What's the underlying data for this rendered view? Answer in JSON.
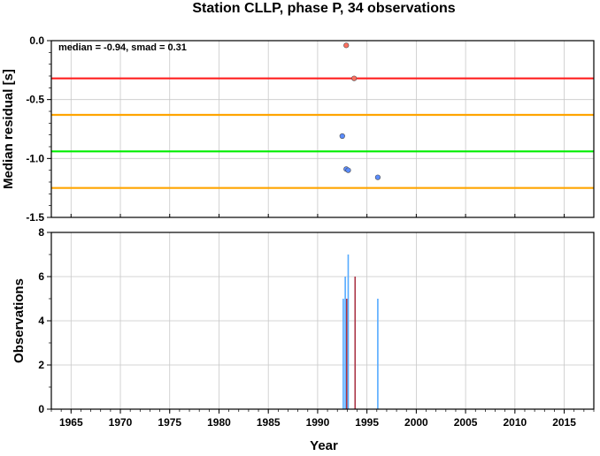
{
  "chart_data": [
    {
      "type": "scatter",
      "title": "Station CLLP, phase P, 34 observations",
      "xlabel": "",
      "ylabel": "Median residual [s]",
      "xlim": [
        1963,
        2018
      ],
      "ylim": [
        -1.5,
        0.0
      ],
      "yticks": [
        "0.0",
        "-0.5",
        "-1.0",
        "-1.5"
      ],
      "grid": true,
      "annotation": "median = -0.94, smad = 0.31",
      "reference_lines": [
        {
          "y": -0.32,
          "color": "#ff2020",
          "role": "upper outlier threshold"
        },
        {
          "y": -0.63,
          "color": "#ffa500",
          "role": "upper smad bound"
        },
        {
          "y": -0.94,
          "color": "#00ee00",
          "role": "median"
        },
        {
          "y": -1.25,
          "color": "#ffa500",
          "role": "lower smad bound"
        }
      ],
      "points": [
        {
          "x": 1992.9,
          "y": -0.04,
          "color": "#ff7060"
        },
        {
          "x": 1993.7,
          "y": -0.32,
          "color": "#ff7060"
        },
        {
          "x": 1992.5,
          "y": -0.81,
          "color": "#5a8cff"
        },
        {
          "x": 1992.9,
          "y": -1.09,
          "color": "#5a8cff"
        },
        {
          "x": 1993.1,
          "y": -1.1,
          "color": "#5a8cff"
        },
        {
          "x": 1996.1,
          "y": -1.16,
          "color": "#5a8cff"
        }
      ]
    },
    {
      "type": "bar",
      "title": "",
      "xlabel": "Year",
      "ylabel": "Observations",
      "xlim": [
        1963,
        2018
      ],
      "ylim": [
        0,
        8
      ],
      "xticks": [
        "1965",
        "1970",
        "1975",
        "1980",
        "1985",
        "1990",
        "1995",
        "2000",
        "2005",
        "2010",
        "2015"
      ],
      "yticks": [
        "0",
        "2",
        "4",
        "6",
        "8"
      ],
      "grid": true,
      "bars": [
        {
          "x": 1992.6,
          "value": 5,
          "color": "#55aaff"
        },
        {
          "x": 1992.8,
          "value": 6,
          "color": "#55aaff"
        },
        {
          "x": 1992.95,
          "value": 5,
          "color": "#aa3344"
        },
        {
          "x": 1993.1,
          "value": 7,
          "color": "#55aaff"
        },
        {
          "x": 1993.8,
          "value": 6,
          "color": "#aa3344"
        },
        {
          "x": 1996.1,
          "value": 5,
          "color": "#55aaff"
        }
      ]
    }
  ]
}
